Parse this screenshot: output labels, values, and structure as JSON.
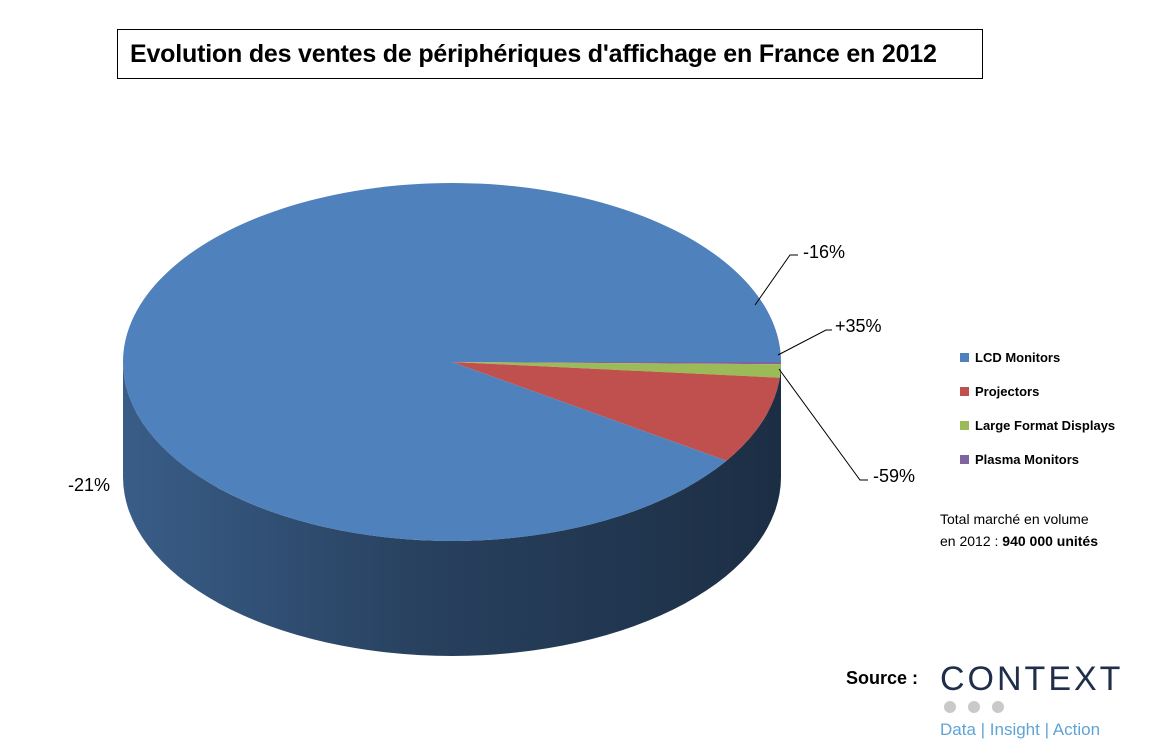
{
  "chart_data": {
    "type": "pie",
    "title": "Evolution des ventes de périphériques d'affichage en France en 2012",
    "slices": [
      {
        "name": "LCD Monitors",
        "value": 90.7,
        "label": "-21%",
        "color": "#4f81bd"
      },
      {
        "name": "Projectors",
        "value": 7.9,
        "label": "-16%",
        "color": "#c0504d"
      },
      {
        "name": "Large Format Displays",
        "value": 1.2,
        "label": "+35%",
        "color": "#9bbb59"
      },
      {
        "name": "Plasma Monitors",
        "value": 0.2,
        "label": "-59%",
        "color": "#8064a2"
      }
    ],
    "legend_position": "right"
  },
  "note": {
    "line1": "Total marché en volume",
    "line2_prefix": "en 2012 : ",
    "line2_value": "940 000 unités"
  },
  "source": {
    "label": "Source :",
    "logo_name": "CONTEXT",
    "logo_tagline": "Data | Insight | Action"
  }
}
